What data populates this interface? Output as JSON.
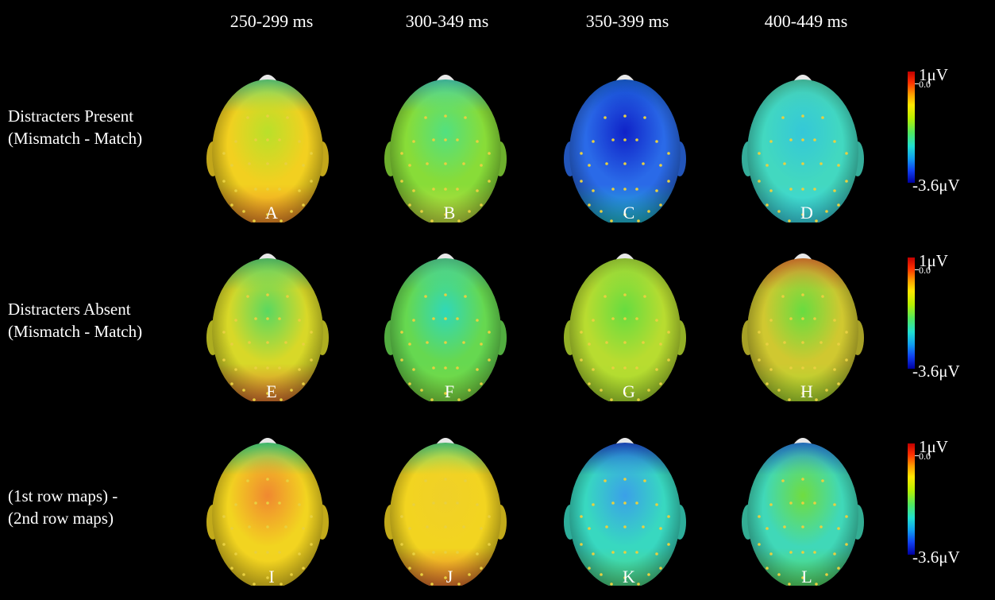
{
  "columns": [
    "250-299 ms",
    "300-349 ms",
    "350-399 ms",
    "400-449 ms"
  ],
  "rows": [
    {
      "label_line1": "Distracters Present",
      "label_line2": "(Mismatch - Match)"
    },
    {
      "label_line1": "Distracters Absent",
      "label_line2": "(Mismatch - Match)"
    },
    {
      "label_line1": "(1st row maps) -",
      "label_line2": "(2nd row maps)"
    }
  ],
  "panels": [
    {
      "letter": "A",
      "base": "#f2d020",
      "center": "#b9e02a",
      "rear": "#f08828",
      "front": "#63d880"
    },
    {
      "letter": "B",
      "base": "#88dc38",
      "center": "#52e080",
      "rear": "#c6e040",
      "front": "#48d0b0"
    },
    {
      "letter": "C",
      "base": "#2a6ae8",
      "center": "#0f22c8",
      "rear": "#22c0d0",
      "front": "#1a60d8"
    },
    {
      "letter": "D",
      "base": "#42d8c0",
      "center": "#34c8d8",
      "rear": "#3ad8e8",
      "front": "#4ad0b0"
    },
    {
      "letter": "E",
      "base": "#d8d828",
      "center": "#5ad860",
      "rear": "#e07030",
      "front": "#58d070"
    },
    {
      "letter": "F",
      "base": "#66d850",
      "center": "#30d8b8",
      "rear": "#80dc40",
      "front": "#50d090"
    },
    {
      "letter": "G",
      "base": "#b8dc30",
      "center": "#66dc40",
      "rear": "#a8dc30",
      "front": "#a0d838"
    },
    {
      "letter": "H",
      "base": "#d0c830",
      "center": "#68dc40",
      "rear": "#a8dc30",
      "front": "#e08030"
    },
    {
      "letter": "I",
      "base": "#f2d420",
      "center": "#f08830",
      "rear": "#f0d020",
      "front": "#4ad880"
    },
    {
      "letter": "J",
      "base": "#f2d420",
      "center": "#f0d028",
      "rear": "#e87030",
      "front": "#58d880"
    },
    {
      "letter": "K",
      "base": "#38d8c0",
      "center": "#3aa0e8",
      "rear": "#50d880",
      "front": "#2050d0"
    },
    {
      "letter": "L",
      "base": "#40d8b8",
      "center": "#70dc40",
      "rear": "#58dc60",
      "front": "#2a80d8"
    }
  ],
  "scale": {
    "top": "1μV",
    "zero": "0.0",
    "bottom": "-3.6μV"
  },
  "colors": {
    "background": "#000000",
    "text": "#ffffff",
    "electrode": "#e8d040"
  }
}
